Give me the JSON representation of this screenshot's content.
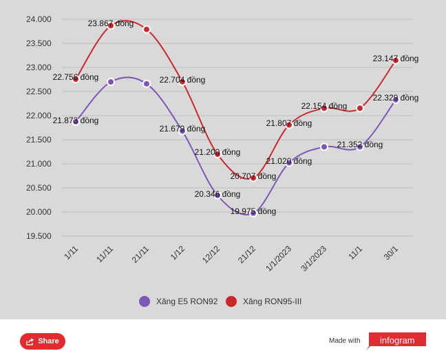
{
  "chart_data": {
    "type": "line",
    "categories": [
      "1/11",
      "11/11",
      "21/11",
      "1/12",
      "12/12",
      "21/12",
      "1/1/2023",
      "3/1/2023",
      "11/1",
      "30/1"
    ],
    "ylim": [
      19500,
      24000
    ],
    "yticks": [
      "24.000",
      "23.500",
      "23.000",
      "22.500",
      "22.000",
      "21.500",
      "21.000",
      "20.500",
      "20.000",
      "19.500"
    ],
    "series": [
      {
        "name": "Xăng E5 RON92",
        "color": "#7e57b6",
        "values": [
          21873,
          22700,
          22660,
          21679,
          20346,
          19975,
          21020,
          21352,
          21352,
          22329
        ],
        "labels": [
          "21.873 đồng",
          "",
          "",
          "21.679 đồng",
          "20.346 đồng",
          "19.975 đồng",
          "21.020 đồng",
          "",
          "21.352 đồng",
          "22.329 đồng"
        ]
      },
      {
        "name": "Xăng RON95-III",
        "color": "#c9282d",
        "values": [
          22756,
          23867,
          23790,
          22704,
          21200,
          20707,
          21807,
          22154,
          22154,
          23147
        ],
        "labels": [
          "22.756 đồng",
          "23.867 đồng",
          "",
          "22.704 đồng",
          "21.200 đồng",
          "20.707 đồng",
          "21.807 đồng",
          "22.154 đồng",
          "",
          "23.147 đồng"
        ]
      }
    ]
  },
  "footer": {
    "share_label": "Share",
    "made_with": "Made with",
    "brand": "infogram"
  }
}
